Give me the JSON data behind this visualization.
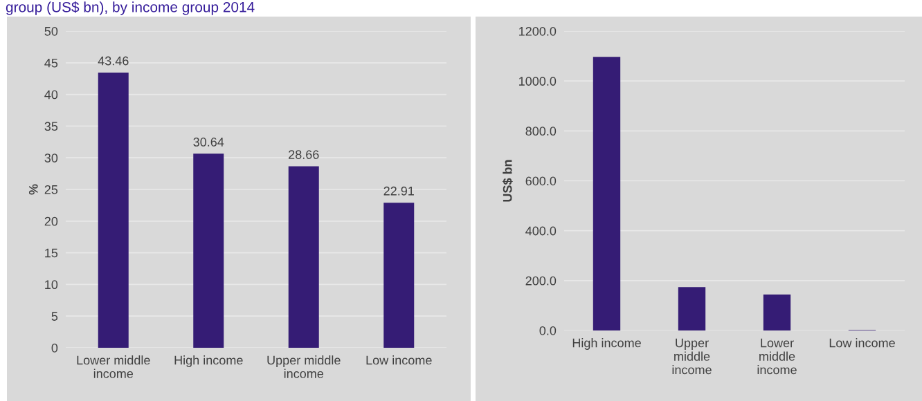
{
  "chart_data": [
    {
      "type": "bar",
      "title": "group (US$ bn), by income group 2014",
      "ylabel": "%",
      "categories": [
        "Lower middle\nincome",
        "High income",
        "Upper middle\nincome",
        "Low income"
      ],
      "values": [
        43.46,
        30.64,
        28.66,
        22.91
      ],
      "color": "#351c75",
      "ylim": [
        0,
        50
      ],
      "yticks": [
        0,
        5,
        10,
        15,
        20,
        25,
        30,
        35,
        40,
        45,
        50
      ],
      "grid": "y",
      "data_labels": true
    },
    {
      "type": "bar",
      "ylabel": "US$ bn",
      "categories": [
        "High income",
        "Upper\nmiddle\nincome",
        "Lower\nmiddle\nincome",
        "Low income"
      ],
      "values": [
        1097,
        174,
        144,
        2
      ],
      "color": "#351c75",
      "ylim": [
        0,
        1200
      ],
      "yticks": [
        {
          "value": 0,
          "label": "0.0"
        },
        {
          "value": 200,
          "label": "200.0"
        },
        {
          "value": 400,
          "label": "400.0"
        },
        {
          "value": 600,
          "label": "600.0"
        },
        {
          "value": 800,
          "label": "800.0"
        },
        {
          "value": 1000,
          "label": "1000.0"
        },
        {
          "value": 1200,
          "label": "1200.0"
        }
      ],
      "grid": "y"
    }
  ]
}
